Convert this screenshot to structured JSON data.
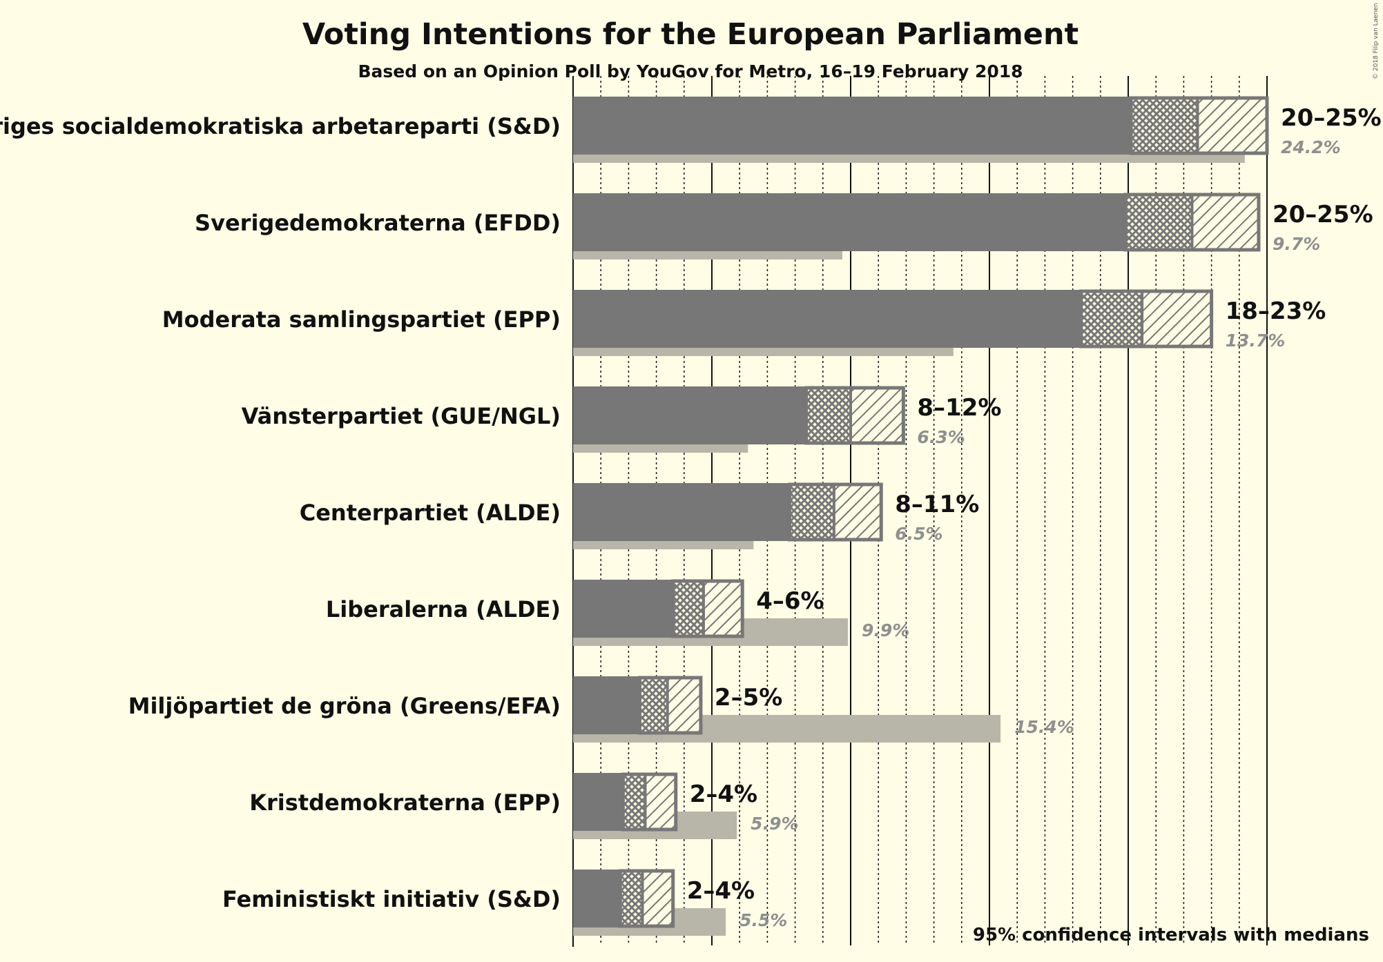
{
  "title": "Voting Intentions for the European Parliament",
  "subtitle": "Based on an Opinion Poll by YouGov for Metro, 16–19 February 2018",
  "footnote": "95% confidence intervals with medians",
  "copyright": "© 2018 Filip van Laenen",
  "colors": {
    "background": "#fffde6",
    "bar": "#777777",
    "result_bar": "#b8b6a8",
    "hatch": "#777777",
    "result_text": "#8f8f8f"
  },
  "chart_data": {
    "type": "bar",
    "orientation": "horizontal",
    "xlim": [
      0,
      30
    ],
    "major_gridlines_every": 5,
    "minor_gridlines_every": 1,
    "parties": [
      {
        "name": "Sveriges socialdemokratiska arbetareparti (S&D)",
        "range_label": "20–25%",
        "ci_low": 20.1,
        "ci_high": 25.0,
        "interval80_low": 20.2,
        "interval80_high": 24.4,
        "median": 22.5,
        "previous_result": 24.2,
        "previous_label": "24.2%"
      },
      {
        "name": "Sverigedemokraterna (EFDD)",
        "range_label": "20–25%",
        "ci_low": 19.9,
        "ci_high": 24.7,
        "interval80_low": 20.0,
        "interval80_high": 24.2,
        "median": 22.3,
        "previous_result": 9.7,
        "previous_label": "9.7%"
      },
      {
        "name": "Moderata samlingspartiet (EPP)",
        "range_label": "18–23%",
        "ci_low": 18.3,
        "ci_high": 23.0,
        "interval80_low": 18.4,
        "interval80_high": 22.5,
        "median": 20.5,
        "previous_result": 13.7,
        "previous_label": "13.7%"
      },
      {
        "name": "Vänsterpartiet (GUE/NGL)",
        "range_label": "8–12%",
        "ci_low": 8.4,
        "ci_high": 11.9,
        "interval80_low": 8.5,
        "interval80_high": 11.5,
        "median": 10.0,
        "previous_result": 6.3,
        "previous_label": "6.3%"
      },
      {
        "name": "Centerpartiet (ALDE)",
        "range_label": "8–11%",
        "ci_low": 7.8,
        "ci_high": 11.1,
        "interval80_low": 7.9,
        "interval80_high": 10.7,
        "median": 9.4,
        "previous_result": 6.5,
        "previous_label": "6.5%"
      },
      {
        "name": "Liberalerna (ALDE)",
        "range_label": "4–6%",
        "ci_low": 3.6,
        "ci_high": 6.1,
        "interval80_low": 3.7,
        "interval80_high": 5.8,
        "median": 4.7,
        "previous_result": 9.9,
        "previous_label": "9.9%"
      },
      {
        "name": "Miljöpartiet de gröna (Greens/EFA)",
        "range_label": "2–5%",
        "ci_low": 2.4,
        "ci_high": 4.6,
        "interval80_low": 2.5,
        "interval80_high": 4.3,
        "median": 3.4,
        "previous_result": 15.4,
        "previous_label": "15.4%"
      },
      {
        "name": "Kristdemokraterna (EPP)",
        "range_label": "2–4%",
        "ci_low": 1.8,
        "ci_high": 3.7,
        "interval80_low": 1.9,
        "interval80_high": 3.4,
        "median": 2.6,
        "previous_result": 5.9,
        "previous_label": "5.9%"
      },
      {
        "name": "Feministiskt initiativ (S&D)",
        "range_label": "2–4%",
        "ci_low": 1.7,
        "ci_high": 3.6,
        "interval80_low": 1.8,
        "interval80_high": 3.3,
        "median": 2.5,
        "previous_result": 5.5,
        "previous_label": "5.5%"
      }
    ]
  }
}
